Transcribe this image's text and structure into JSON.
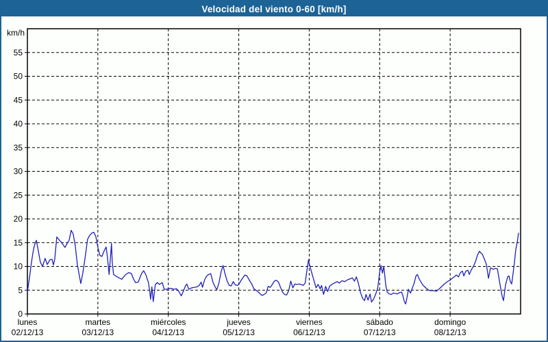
{
  "window": {
    "title": "Velocidad del viento 0-60 [km/h]"
  },
  "colors": {
    "titlebar_bg": "#1d6396",
    "frame_border": "#1d6396",
    "page_bg": "#fdfffd",
    "plot_bg": "#fdfffd",
    "line": "#1f1fb8",
    "grid": "#000000",
    "axis": "#000000",
    "text": "#000000",
    "title_text": "#ffffff"
  },
  "chart_data": {
    "type": "line",
    "title": "Velocidad del viento 0-60 [km/h]",
    "ylabel": "km/h",
    "xlabel": "",
    "ylim": [
      0,
      60
    ],
    "ytick_step": 5,
    "ytick_labels": [
      "0",
      "5",
      "10",
      "15",
      "20",
      "25",
      "30",
      "35",
      "40",
      "45",
      "50",
      "55"
    ],
    "grid": "dashed",
    "legend": "none",
    "x_unit": "days",
    "xlim_days": [
      0,
      7
    ],
    "xticks": [
      {
        "day": "lunes",
        "date": "02/12/13"
      },
      {
        "day": "martes",
        "date": "03/12/13"
      },
      {
        "day": "miércoles",
        "date": "04/12/13"
      },
      {
        "day": "jueves",
        "date": "05/12/13"
      },
      {
        "day": "viernes",
        "date": "06/12/13"
      },
      {
        "day": "sábado",
        "date": "07/12/13"
      },
      {
        "day": "domingo",
        "date": "08/12/13"
      }
    ],
    "series": [
      {
        "name": "velocidad del viento",
        "color": "#1f1fb8",
        "points": [
          [
            0.0,
            4.6
          ],
          [
            0.019,
            6.6
          ],
          [
            0.039,
            8.7
          ],
          [
            0.058,
            10.9
          ],
          [
            0.078,
            12.8
          ],
          [
            0.097,
            14.3
          ],
          [
            0.126,
            15.5
          ],
          [
            0.155,
            13.3
          ],
          [
            0.184,
            10.9
          ],
          [
            0.214,
            10.0
          ],
          [
            0.252,
            11.7
          ],
          [
            0.282,
            10.4
          ],
          [
            0.32,
            11.4
          ],
          [
            0.35,
            11.5
          ],
          [
            0.369,
            10.3
          ],
          [
            0.388,
            11.5
          ],
          [
            0.417,
            16.2
          ],
          [
            0.456,
            15.5
          ],
          [
            0.485,
            15.0
          ],
          [
            0.534,
            14.0
          ],
          [
            0.563,
            14.8
          ],
          [
            0.592,
            15.5
          ],
          [
            0.621,
            17.6
          ],
          [
            0.65,
            16.8
          ],
          [
            0.68,
            14.3
          ],
          [
            0.709,
            10.4
          ],
          [
            0.757,
            6.4
          ],
          [
            0.786,
            8.5
          ],
          [
            0.816,
            11.5
          ],
          [
            0.854,
            15.7
          ],
          [
            0.883,
            16.5
          ],
          [
            0.913,
            17.0
          ],
          [
            0.942,
            17.2
          ],
          [
            0.971,
            16.3
          ],
          [
            1.0,
            14.0
          ],
          [
            1.029,
            12.3
          ],
          [
            1.058,
            12.1
          ],
          [
            1.087,
            13.2
          ],
          [
            1.117,
            14.1
          ],
          [
            1.136,
            12.0
          ],
          [
            1.16,
            8.3
          ],
          [
            1.194,
            14.8
          ],
          [
            1.204,
            11.0
          ],
          [
            1.223,
            8.3
          ],
          [
            1.262,
            7.9
          ],
          [
            1.301,
            7.6
          ],
          [
            1.34,
            7.3
          ],
          [
            1.388,
            8.2
          ],
          [
            1.437,
            8.7
          ],
          [
            1.476,
            8.5
          ],
          [
            1.505,
            7.4
          ],
          [
            1.534,
            6.6
          ],
          [
            1.573,
            6.7
          ],
          [
            1.621,
            8.5
          ],
          [
            1.65,
            9.1
          ],
          [
            1.68,
            8.3
          ],
          [
            1.718,
            6.6
          ],
          [
            1.738,
            4.5
          ],
          [
            1.748,
            3.1
          ],
          [
            1.767,
            5.7
          ],
          [
            1.786,
            2.6
          ],
          [
            1.816,
            6.2
          ],
          [
            1.845,
            6.6
          ],
          [
            1.874,
            6.2
          ],
          [
            1.913,
            6.6
          ],
          [
            1.942,
            5.2
          ],
          [
            1.971,
            5.2
          ],
          [
            2.0,
            5.3
          ],
          [
            2.039,
            5.4
          ],
          [
            2.078,
            5.2
          ],
          [
            2.117,
            5.3
          ],
          [
            2.155,
            4.6
          ],
          [
            2.184,
            3.8
          ],
          [
            2.214,
            4.8
          ],
          [
            2.243,
            5.9
          ],
          [
            2.262,
            6.3
          ],
          [
            2.291,
            5.2
          ],
          [
            2.33,
            5.5
          ],
          [
            2.369,
            5.6
          ],
          [
            2.408,
            5.7
          ],
          [
            2.437,
            6.0
          ],
          [
            2.466,
            6.7
          ],
          [
            2.485,
            5.6
          ],
          [
            2.515,
            7.2
          ],
          [
            2.544,
            8.0
          ],
          [
            2.573,
            8.3
          ],
          [
            2.602,
            8.5
          ],
          [
            2.631,
            6.8
          ],
          [
            2.66,
            5.8
          ],
          [
            2.689,
            5.1
          ],
          [
            2.718,
            6.5
          ],
          [
            2.748,
            8.8
          ],
          [
            2.777,
            10.2
          ],
          [
            2.806,
            8.4
          ],
          [
            2.835,
            6.9
          ],
          [
            2.864,
            6.0
          ],
          [
            2.893,
            5.9
          ],
          [
            2.922,
            6.8
          ],
          [
            2.951,
            6.1
          ],
          [
            2.981,
            6.0
          ],
          [
            3.0,
            6.2
          ],
          [
            3.029,
            7.0
          ],
          [
            3.058,
            7.6
          ],
          [
            3.087,
            8.2
          ],
          [
            3.117,
            8.0
          ],
          [
            3.146,
            7.2
          ],
          [
            3.184,
            6.3
          ],
          [
            3.214,
            5.3
          ],
          [
            3.252,
            4.9
          ],
          [
            3.291,
            4.4
          ],
          [
            3.33,
            3.9
          ],
          [
            3.359,
            4.1
          ],
          [
            3.388,
            4.4
          ],
          [
            3.417,
            5.8
          ],
          [
            3.447,
            5.6
          ],
          [
            3.476,
            6.2
          ],
          [
            3.505,
            6.9
          ],
          [
            3.534,
            7.1
          ],
          [
            3.563,
            6.7
          ],
          [
            3.592,
            5.6
          ],
          [
            3.621,
            4.6
          ],
          [
            3.65,
            4.1
          ],
          [
            3.68,
            4.0
          ],
          [
            3.709,
            4.9
          ],
          [
            3.738,
            6.9
          ],
          [
            3.767,
            5.5
          ],
          [
            3.796,
            6.3
          ],
          [
            3.825,
            6.2
          ],
          [
            3.854,
            6.3
          ],
          [
            3.883,
            6.2
          ],
          [
            3.913,
            6.0
          ],
          [
            3.942,
            6.5
          ],
          [
            3.971,
            9.5
          ],
          [
            3.99,
            11.4
          ],
          [
            4.0,
            10.6
          ],
          [
            4.029,
            9.0
          ],
          [
            4.058,
            7.5
          ],
          [
            4.097,
            5.5
          ],
          [
            4.126,
            6.2
          ],
          [
            4.155,
            5.3
          ],
          [
            4.175,
            6.0
          ],
          [
            4.204,
            4.1
          ],
          [
            4.233,
            5.8
          ],
          [
            4.262,
            4.7
          ],
          [
            4.291,
            5.9
          ],
          [
            4.33,
            6.3
          ],
          [
            4.369,
            6.6
          ],
          [
            4.398,
            6.8
          ],
          [
            4.427,
            6.5
          ],
          [
            4.466,
            7.0
          ],
          [
            4.505,
            6.8
          ],
          [
            4.544,
            7.2
          ],
          [
            4.583,
            7.4
          ],
          [
            4.612,
            7.6
          ],
          [
            4.641,
            6.9
          ],
          [
            4.67,
            7.8
          ],
          [
            4.699,
            6.4
          ],
          [
            4.728,
            4.5
          ],
          [
            4.757,
            3.3
          ],
          [
            4.786,
            2.8
          ],
          [
            4.806,
            4.1
          ],
          [
            4.835,
            2.9
          ],
          [
            4.864,
            4.2
          ],
          [
            4.883,
            2.5
          ],
          [
            4.913,
            3.1
          ],
          [
            4.942,
            4.1
          ],
          [
            4.971,
            5.4
          ],
          [
            4.981,
            6.5
          ],
          [
            5.0,
            8.8
          ],
          [
            5.019,
            10.2
          ],
          [
            5.039,
            8.6
          ],
          [
            5.058,
            10.0
          ],
          [
            5.087,
            6.0
          ],
          [
            5.107,
            4.6
          ],
          [
            5.136,
            4.2
          ],
          [
            5.165,
            4.1
          ],
          [
            5.194,
            4.4
          ],
          [
            5.223,
            4.3
          ],
          [
            5.252,
            4.2
          ],
          [
            5.281,
            4.5
          ],
          [
            5.311,
            4.6
          ],
          [
            5.33,
            3.8
          ],
          [
            5.35,
            2.6
          ],
          [
            5.369,
            2.1
          ],
          [
            5.388,
            3.5
          ],
          [
            5.408,
            5.2
          ],
          [
            5.437,
            4.4
          ],
          [
            5.485,
            6.3
          ],
          [
            5.515,
            8.0
          ],
          [
            5.534,
            8.3
          ],
          [
            5.563,
            7.3
          ],
          [
            5.612,
            6.1
          ],
          [
            5.66,
            5.4
          ],
          [
            5.709,
            4.9
          ],
          [
            5.757,
            4.9
          ],
          [
            5.806,
            4.8
          ],
          [
            5.854,
            5.4
          ],
          [
            5.903,
            6.1
          ],
          [
            5.942,
            6.6
          ],
          [
            5.971,
            6.9
          ],
          [
            6.0,
            7.1
          ],
          [
            6.029,
            7.5
          ],
          [
            6.058,
            7.8
          ],
          [
            6.087,
            8.2
          ],
          [
            6.117,
            7.8
          ],
          [
            6.146,
            8.7
          ],
          [
            6.175,
            9.0
          ],
          [
            6.194,
            8.0
          ],
          [
            6.223,
            9.0
          ],
          [
            6.252,
            9.2
          ],
          [
            6.272,
            8.3
          ],
          [
            6.301,
            9.3
          ],
          [
            6.33,
            10.0
          ],
          [
            6.359,
            11.0
          ],
          [
            6.388,
            12.4
          ],
          [
            6.417,
            13.2
          ],
          [
            6.437,
            12.8
          ],
          [
            6.456,
            12.6
          ],
          [
            6.485,
            11.6
          ],
          [
            6.515,
            10.4
          ],
          [
            6.544,
            7.5
          ],
          [
            6.573,
            9.7
          ],
          [
            6.612,
            9.4
          ],
          [
            6.641,
            9.6
          ],
          [
            6.67,
            9.5
          ],
          [
            6.709,
            6.1
          ],
          [
            6.738,
            3.7
          ],
          [
            6.757,
            2.8
          ],
          [
            6.786,
            6.1
          ],
          [
            6.816,
            7.8
          ],
          [
            6.835,
            8.0
          ],
          [
            6.854,
            6.8
          ],
          [
            6.874,
            6.3
          ],
          [
            6.893,
            8.5
          ],
          [
            6.913,
            11.0
          ],
          [
            6.932,
            13.6
          ],
          [
            6.951,
            15.0
          ],
          [
            6.971,
            17.0
          ]
        ]
      }
    ]
  }
}
